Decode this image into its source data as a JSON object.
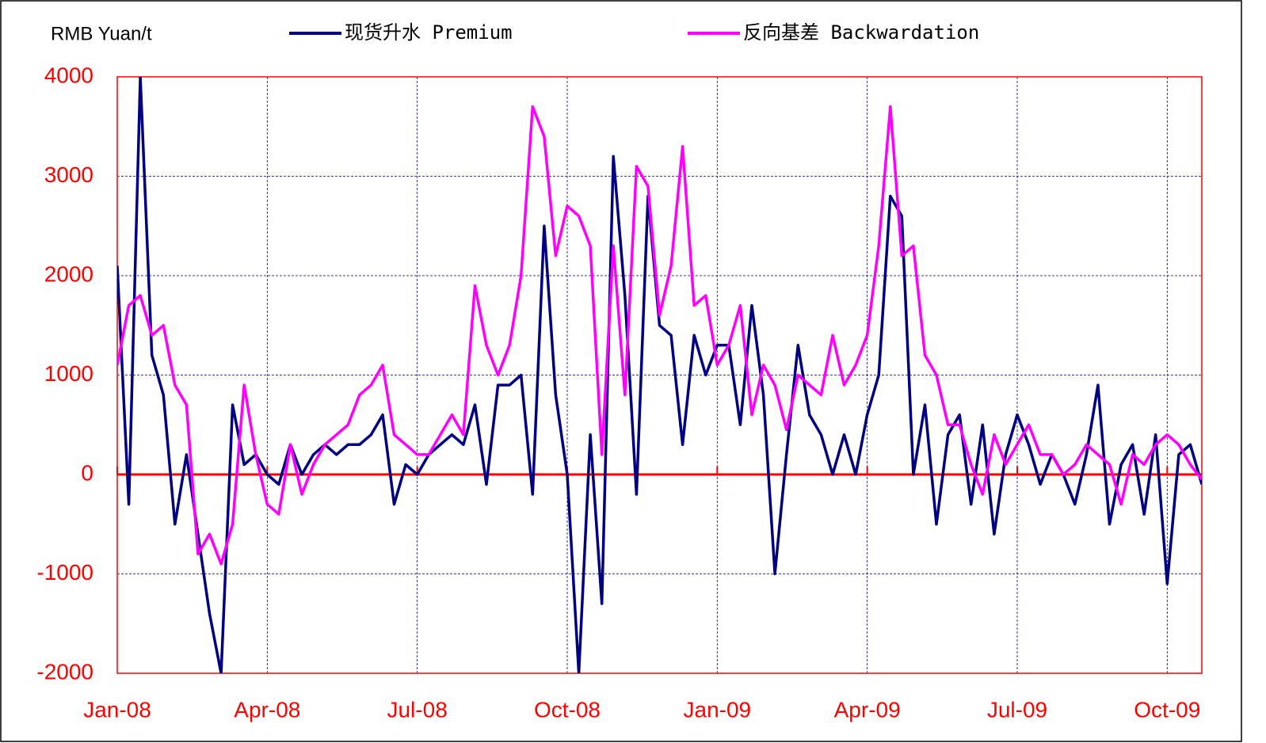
{
  "chart_data": {
    "type": "line",
    "y_label": "RMB Yuan/t",
    "categories": [
      "Jan-08",
      null,
      null,
      null,
      null,
      null,
      null,
      null,
      null,
      null,
      null,
      null,
      null,
      "Apr-08",
      null,
      null,
      null,
      null,
      null,
      null,
      null,
      null,
      null,
      null,
      null,
      null,
      "Jul-08",
      null,
      null,
      null,
      null,
      null,
      null,
      null,
      null,
      null,
      null,
      null,
      null,
      "Oct-08",
      null,
      null,
      null,
      null,
      null,
      null,
      null,
      null,
      null,
      null,
      null,
      null,
      "Jan-09",
      null,
      null,
      null,
      null,
      null,
      null,
      null,
      null,
      null,
      null,
      null,
      null,
      "Apr-09",
      null,
      null,
      null,
      null,
      null,
      null,
      null,
      null,
      null,
      null,
      null,
      null,
      "Jul-09",
      null,
      null,
      null,
      null,
      null,
      null,
      null,
      null,
      null,
      null,
      null,
      null,
      "Oct-09",
      null,
      null,
      null
    ],
    "series": [
      {
        "name": "现货升水 Premium",
        "color": "#000080",
        "values": [
          2100,
          -300,
          4000,
          1200,
          800,
          -500,
          200,
          -600,
          -1400,
          -2000,
          700,
          100,
          200,
          0,
          -100,
          300,
          0,
          200,
          300,
          200,
          300,
          300,
          400,
          600,
          -300,
          100,
          0,
          200,
          300,
          400,
          300,
          700,
          -100,
          900,
          900,
          1000,
          -200,
          2500,
          800,
          0,
          -2000,
          400,
          -1300,
          3200,
          1800,
          -200,
          2800,
          1500,
          1400,
          300,
          1400,
          1000,
          1300,
          1300,
          500,
          1700,
          800,
          -1000,
          200,
          1300,
          600,
          400,
          0,
          400,
          0,
          600,
          1000,
          2800,
          2600,
          0,
          700,
          -500,
          400,
          600,
          -300,
          500,
          -600,
          200,
          600,
          300,
          -100,
          200,
          0,
          -300,
          200,
          900,
          -500,
          100,
          300,
          -400,
          400,
          -1100,
          200,
          300,
          -100
        ]
      },
      {
        "name": "反向基差 Backwardation",
        "color": "#ff00ff",
        "values": [
          1100,
          1700,
          1800,
          1400,
          1500,
          900,
          700,
          -800,
          -600,
          -900,
          -500,
          900,
          200,
          -300,
          -400,
          300,
          -200,
          100,
          300,
          400,
          500,
          800,
          900,
          1100,
          400,
          300,
          200,
          200,
          400,
          600,
          400,
          1900,
          1300,
          1000,
          1300,
          2000,
          3700,
          3400,
          2200,
          2700,
          2600,
          2300,
          200,
          2300,
          800,
          3100,
          2900,
          1600,
          2100,
          3300,
          1700,
          1800,
          1100,
          1300,
          1700,
          600,
          1100,
          900,
          450,
          1000,
          900,
          800,
          1400,
          900,
          1100,
          1400,
          2300,
          3700,
          2200,
          2300,
          1200,
          1000,
          500,
          500,
          100,
          -200,
          400,
          100,
          300,
          500,
          200,
          200,
          0,
          100,
          300,
          200,
          100,
          -300,
          200,
          100,
          300,
          400,
          300,
          100,
          -50
        ]
      }
    ],
    "ylim": [
      -2000,
      4000
    ],
    "yticks": [
      -2000,
      -1000,
      0,
      1000,
      2000,
      3000,
      4000
    ],
    "grid": true
  }
}
